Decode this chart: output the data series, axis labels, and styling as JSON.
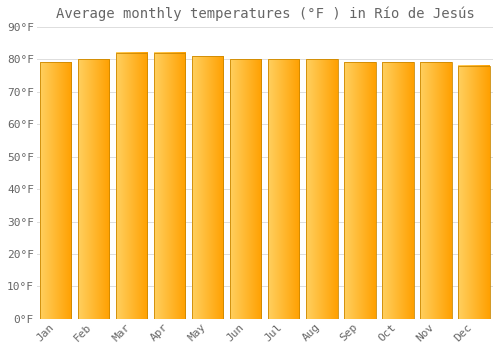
{
  "title": "Average monthly temperatures (°F ) in Río de Jesús",
  "months": [
    "Jan",
    "Feb",
    "Mar",
    "Apr",
    "May",
    "Jun",
    "Jul",
    "Aug",
    "Sep",
    "Oct",
    "Nov",
    "Dec"
  ],
  "values": [
    79,
    80,
    82,
    82,
    81,
    80,
    80,
    80,
    79,
    79,
    79,
    78
  ],
  "bar_color_left": "#FFD060",
  "bar_color_right": "#FFA000",
  "bar_edge_color": "#CC8800",
  "background_color": "#FFFFFF",
  "grid_color": "#DDDDDD",
  "text_color": "#666666",
  "ylim": [
    0,
    90
  ],
  "yticks": [
    0,
    10,
    20,
    30,
    40,
    50,
    60,
    70,
    80,
    90
  ],
  "ytick_labels": [
    "0°F",
    "10°F",
    "20°F",
    "30°F",
    "40°F",
    "50°F",
    "60°F",
    "70°F",
    "80°F",
    "90°F"
  ],
  "title_fontsize": 10,
  "tick_fontsize": 8,
  "font_family": "monospace",
  "bar_width": 0.82
}
